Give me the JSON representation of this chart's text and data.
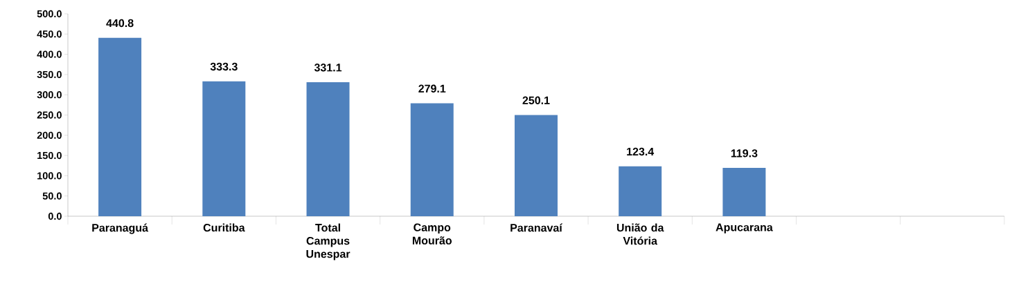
{
  "chart_data": {
    "type": "bar",
    "categories": [
      "Paranaguá",
      "Curitiba",
      "Total Campus Unespar",
      "Campo Mourão",
      "Paranavaí",
      "União da Vitória",
      "Apucarana",
      null,
      null
    ],
    "values": [
      440.8,
      333.3,
      331.1,
      279.1,
      250.1,
      123.4,
      119.3,
      null,
      null
    ],
    "value_labels": [
      "440.8",
      "333.3",
      "331.1",
      "279.1",
      "250.1",
      "123.4",
      "119.3",
      null,
      null
    ],
    "color": "#4f81bd",
    "ylim": [
      0,
      500
    ],
    "yticks": [
      {
        "value": 0,
        "label": "0.0"
      },
      {
        "value": 50,
        "label": "50.0"
      },
      {
        "value": 100,
        "label": "100.0"
      },
      {
        "value": 150,
        "label": "150.0"
      },
      {
        "value": 200,
        "label": "200.0"
      },
      {
        "value": 250,
        "label": "250.0"
      },
      {
        "value": 300,
        "label": "300.0"
      },
      {
        "value": 350,
        "label": "350.0"
      },
      {
        "value": 400,
        "label": "400.0"
      },
      {
        "value": 450,
        "label": "450.0"
      },
      {
        "value": 500,
        "label": "500.0"
      }
    ],
    "grid": false
  }
}
